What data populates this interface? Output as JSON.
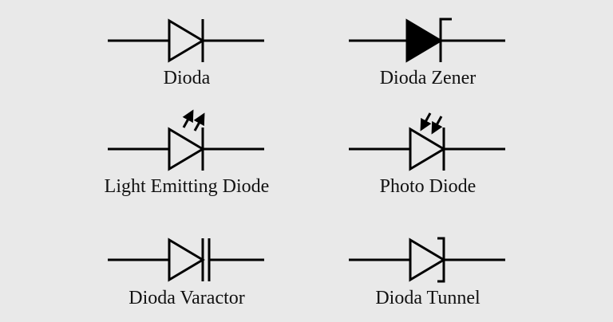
{
  "symbols": [
    {
      "key": "diode",
      "label": "Dioda"
    },
    {
      "key": "zener",
      "label": "Dioda Zener"
    },
    {
      "key": "led",
      "label": "Light Emitting Diode"
    },
    {
      "key": "photo",
      "label": "Photo Diode"
    },
    {
      "key": "varactor",
      "label": "Dioda Varactor"
    },
    {
      "key": "tunnel",
      "label": "Dioda Tunnel"
    }
  ],
  "colors": {
    "background": "#e9e9e9",
    "stroke": "#000000"
  }
}
